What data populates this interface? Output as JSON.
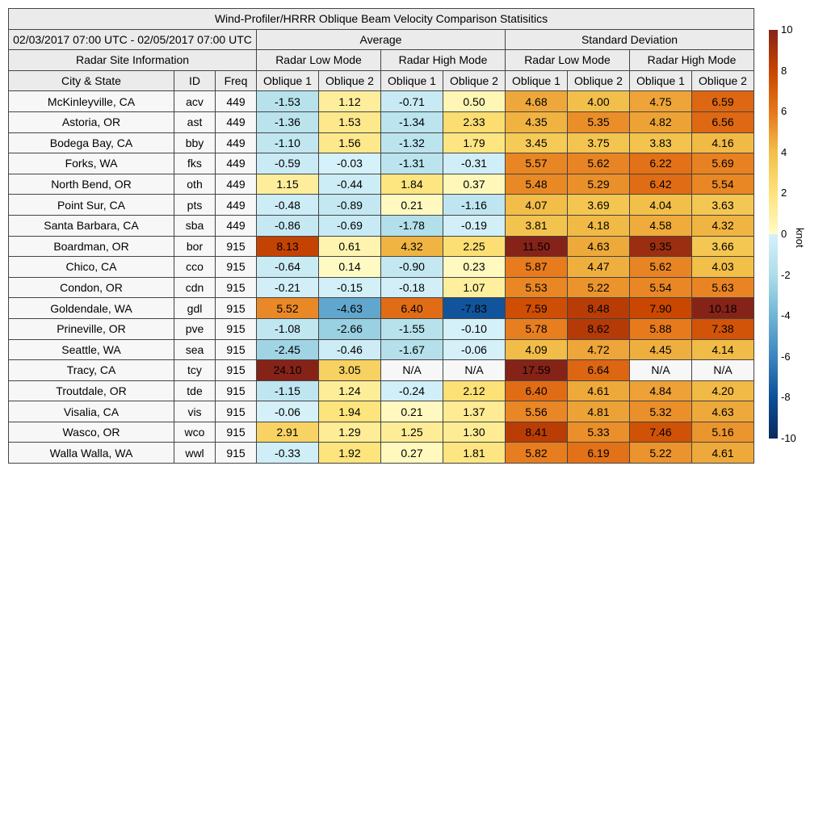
{
  "chart_data": {
    "type": "heatmap",
    "title": "Wind-Profiler/HRRR Oblique Beam Velocity Comparison Statisitics",
    "period": "02/03/2017 07:00 UTC - 02/05/2017 07:00 UTC",
    "site_header": "Radar Site Information",
    "groups": [
      "Average",
      "Standard Deviation"
    ],
    "modes": [
      "Radar Low Mode",
      "Radar High Mode",
      "Radar Low Mode",
      "Radar High Mode"
    ],
    "columns": [
      "City & State",
      "ID",
      "Freq",
      "Oblique 1",
      "Oblique 2",
      "Oblique 1",
      "Oblique 2",
      "Oblique 1",
      "Oblique 2",
      "Oblique 1",
      "Oblique 2"
    ],
    "rows": [
      [
        "McKinleyville, CA",
        "acv",
        "449",
        "-1.53",
        "1.12",
        "-0.71",
        "0.50",
        "4.68",
        "4.00",
        "4.75",
        "6.59"
      ],
      [
        "Astoria, OR",
        "ast",
        "449",
        "-1.36",
        "1.53",
        "-1.34",
        "2.33",
        "4.35",
        "5.35",
        "4.82",
        "6.56"
      ],
      [
        "Bodega Bay, CA",
        "bby",
        "449",
        "-1.10",
        "1.56",
        "-1.32",
        "1.79",
        "3.45",
        "3.75",
        "3.83",
        "4.16"
      ],
      [
        "Forks, WA",
        "fks",
        "449",
        "-0.59",
        "-0.03",
        "-1.31",
        "-0.31",
        "5.57",
        "5.62",
        "6.22",
        "5.69"
      ],
      [
        "North Bend, OR",
        "oth",
        "449",
        "1.15",
        "-0.44",
        "1.84",
        "0.37",
        "5.48",
        "5.29",
        "6.42",
        "5.54"
      ],
      [
        "Point Sur, CA",
        "pts",
        "449",
        "-0.48",
        "-0.89",
        "0.21",
        "-1.16",
        "4.07",
        "3.69",
        "4.04",
        "3.63"
      ],
      [
        "Santa Barbara, CA",
        "sba",
        "449",
        "-0.86",
        "-0.69",
        "-1.78",
        "-0.19",
        "3.81",
        "4.18",
        "4.58",
        "4.32"
      ],
      [
        "Boardman, OR",
        "bor",
        "915",
        "8.13",
        "0.61",
        "4.32",
        "2.25",
        "11.50",
        "4.63",
        "9.35",
        "3.66"
      ],
      [
        "Chico, CA",
        "cco",
        "915",
        "-0.64",
        "0.14",
        "-0.90",
        "0.23",
        "5.87",
        "4.47",
        "5.62",
        "4.03"
      ],
      [
        "Condon, OR",
        "cdn",
        "915",
        "-0.21",
        "-0.15",
        "-0.18",
        "1.07",
        "5.53",
        "5.22",
        "5.54",
        "5.63"
      ],
      [
        "Goldendale, WA",
        "gdl",
        "915",
        "5.52",
        "-4.63",
        "6.40",
        "-7.83",
        "7.59",
        "8.48",
        "7.90",
        "10.18"
      ],
      [
        "Prineville, OR",
        "pve",
        "915",
        "-1.08",
        "-2.66",
        "-1.55",
        "-0.10",
        "5.78",
        "8.62",
        "5.88",
        "7.38"
      ],
      [
        "Seattle, WA",
        "sea",
        "915",
        "-2.45",
        "-0.46",
        "-1.67",
        "-0.06",
        "4.09",
        "4.72",
        "4.45",
        "4.14"
      ],
      [
        "Tracy, CA",
        "tcy",
        "915",
        "24.10",
        "3.05",
        "N/A",
        "N/A",
        "17.59",
        "6.64",
        "N/A",
        "N/A"
      ],
      [
        "Troutdale, OR",
        "tde",
        "915",
        "-1.15",
        "1.24",
        "-0.24",
        "2.12",
        "6.40",
        "4.61",
        "4.84",
        "4.20"
      ],
      [
        "Visalia, CA",
        "vis",
        "915",
        "-0.06",
        "1.94",
        "0.21",
        "1.37",
        "5.56",
        "4.81",
        "5.32",
        "4.63"
      ],
      [
        "Wasco, OR",
        "wco",
        "915",
        "2.91",
        "1.29",
        "1.25",
        "1.30",
        "8.41",
        "5.33",
        "7.46",
        "5.16"
      ],
      [
        "Walla Walla, WA",
        "wwl",
        "915",
        "-0.33",
        "1.92",
        "0.27",
        "1.81",
        "5.82",
        "6.19",
        "5.22",
        "4.61"
      ]
    ],
    "colorbar": {
      "label": "knot",
      "range": [
        -10,
        10
      ],
      "ticks": [
        "10",
        "8",
        "6",
        "4",
        "2",
        "0",
        "-2",
        "-4",
        "-6",
        "-8",
        "-10"
      ],
      "colors_pos": [
        "#fffcc8",
        "#fde37a",
        "#f2c04a",
        "#e6761a",
        "#c84400",
        "#862318"
      ],
      "colors_neg": [
        "#d6f1fa",
        "#aedde8",
        "#6fb5d5",
        "#3e84bd",
        "#0d4f98",
        "#082a5c"
      ],
      "na_color": "#f7f7f7"
    }
  }
}
